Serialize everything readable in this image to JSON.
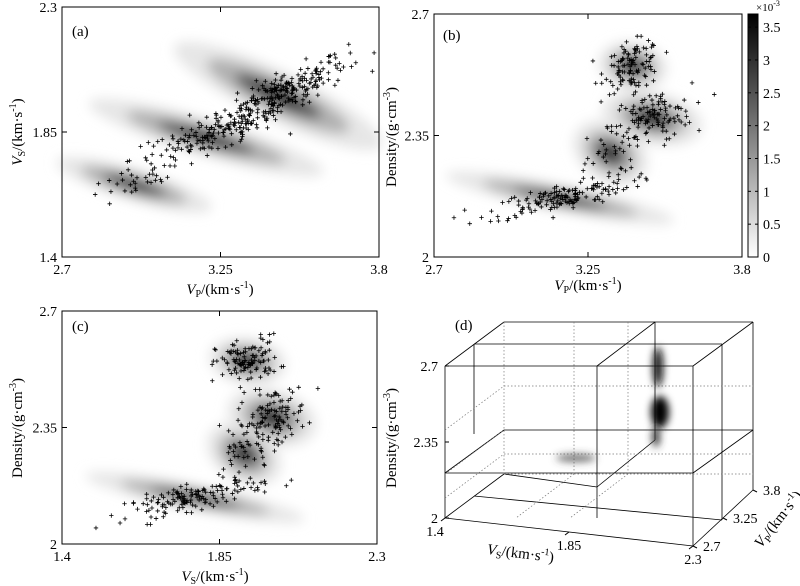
{
  "figure": {
    "colorbar": {
      "exponent_label": "×10",
      "exponent_power": "-3",
      "ticks": [
        "0",
        "0.5",
        "1",
        "1.5",
        "2",
        "2.5",
        "3",
        "3.5"
      ],
      "tick_values": [
        0,
        0.5,
        1,
        1.5,
        2,
        2.5,
        3,
        3.5
      ],
      "max": 3.7
    }
  },
  "chart_data": [
    {
      "type": "scatter",
      "panel": "(a)",
      "xlabel_main": "V",
      "xlabel_sub": "P",
      "xlabel_unit": "/(km·s",
      "xlabel_exp": "-1",
      "xlabel_close": ")",
      "ylabel_main": "V",
      "ylabel_sub": "S",
      "ylabel_unit": "/(km·s",
      "ylabel_exp": "-1",
      "ylabel_close": ")",
      "xlim": [
        2.7,
        3.8
      ],
      "ylim": [
        1.4,
        2.3
      ],
      "xticks": [
        "2.7",
        "3.25",
        "3.8"
      ],
      "yticks": [
        "1.4",
        "1.85",
        "2.3"
      ],
      "clusters": [
        {
          "cx": 3.45,
          "cy": 1.98,
          "sx": 0.12,
          "sy": 0.07,
          "rho": 0.85,
          "n": 260
        },
        {
          "cx": 3.2,
          "cy": 1.83,
          "sx": 0.13,
          "sy": 0.05,
          "rho": 0.8,
          "n": 120
        },
        {
          "cx": 2.95,
          "cy": 1.66,
          "sx": 0.09,
          "sy": 0.04,
          "rho": 0.7,
          "n": 30
        }
      ]
    },
    {
      "type": "scatter",
      "panel": "(b)",
      "xlabel_main": "V",
      "xlabel_sub": "P",
      "xlabel_unit": "/(km·s",
      "xlabel_exp": "-1",
      "xlabel_close": ")",
      "ylabel_main": "Density/(g·cm",
      "ylabel_exp": "-3",
      "ylabel_close": ")",
      "xlim": [
        2.7,
        3.8
      ],
      "ylim": [
        2.0,
        2.7
      ],
      "xticks": [
        "2.7",
        "3.25",
        "3.8"
      ],
      "yticks": [
        "2",
        "2.35",
        "2.7"
      ],
      "clusters": [
        {
          "cx": 3.41,
          "cy": 2.55,
          "sx": 0.05,
          "sy": 0.035,
          "rho": 0.2,
          "n": 110
        },
        {
          "cx": 3.48,
          "cy": 2.4,
          "sx": 0.07,
          "sy": 0.04,
          "rho": 0.3,
          "n": 110
        },
        {
          "cx": 3.15,
          "cy": 2.17,
          "sx": 0.13,
          "sy": 0.028,
          "rho": 0.75,
          "n": 150
        },
        {
          "cx": 3.33,
          "cy": 2.3,
          "sx": 0.05,
          "sy": 0.05,
          "rho": 0.5,
          "n": 40
        }
      ]
    },
    {
      "type": "scatter",
      "panel": "(c)",
      "xlabel_main": "V",
      "xlabel_sub": "S",
      "xlabel_unit": "/(km·s",
      "xlabel_exp": "-1",
      "xlabel_close": ")",
      "ylabel_main": "Density/(g·cm",
      "ylabel_exp": "-3",
      "ylabel_close": ")",
      "xlim": [
        1.4,
        2.3
      ],
      "ylim": [
        2.0,
        2.7
      ],
      "xticks": [
        "1.4",
        "1.85",
        "2.3"
      ],
      "yticks": [
        "2",
        "2.35",
        "2.7"
      ],
      "clusters": [
        {
          "cx": 1.93,
          "cy": 2.55,
          "sx": 0.045,
          "sy": 0.035,
          "rho": 0.2,
          "n": 110
        },
        {
          "cx": 2.0,
          "cy": 2.38,
          "sx": 0.05,
          "sy": 0.045,
          "rho": 0.3,
          "n": 110
        },
        {
          "cx": 1.78,
          "cy": 2.14,
          "sx": 0.1,
          "sy": 0.028,
          "rho": 0.75,
          "n": 150
        },
        {
          "cx": 1.92,
          "cy": 2.27,
          "sx": 0.04,
          "sy": 0.05,
          "rho": 0.5,
          "n": 40
        }
      ]
    },
    {
      "type": "scatter3d",
      "panel": "(d)",
      "xlabel_main": "V",
      "xlabel_sub": "S",
      "xlabel_unit": "/(km·s",
      "xlabel_exp": "-1",
      "xlabel_close": ")",
      "ylabel_main": "V",
      "ylabel_sub": "P",
      "ylabel_unit": "/(km·s",
      "ylabel_exp": "-1",
      "ylabel_close": ")",
      "zlabel_main": "Density/(g·cm",
      "zlabel_exp": "-3",
      "zlabel_close": ")",
      "xlim": [
        1.4,
        2.3
      ],
      "ylim": [
        2.7,
        3.8
      ],
      "zlim": [
        2.0,
        2.7
      ],
      "xticks": [
        "1.4",
        "1.85",
        "2.3"
      ],
      "yticks": [
        "2.7",
        "3.25",
        "3.8"
      ],
      "zticks": [
        "2",
        "2.35",
        "2.7"
      ]
    }
  ]
}
